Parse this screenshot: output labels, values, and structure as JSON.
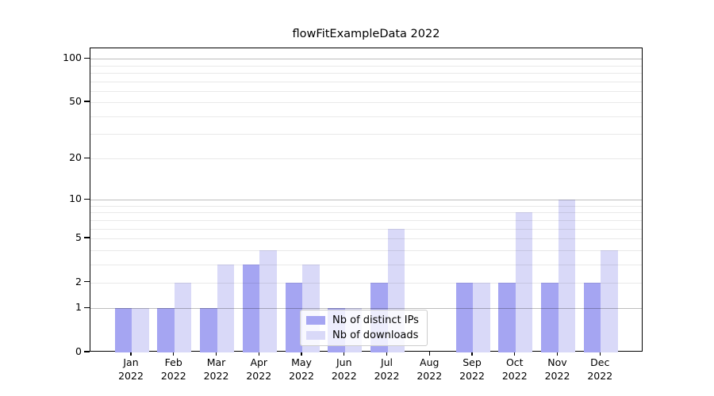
{
  "chart_data": {
    "type": "bar",
    "title": "flowFitExampleData 2022",
    "categories": [
      "Jan",
      "Feb",
      "Mar",
      "Apr",
      "May",
      "Jun",
      "Jul",
      "Aug",
      "Sep",
      "Oct",
      "Nov",
      "Dec"
    ],
    "year_label": "2022",
    "x_tick_labels": [
      "Jan 2022",
      "Feb 2022",
      "Mar 2022",
      "Apr 2022",
      "May 2022",
      "Jun 2022",
      "Jul 2022",
      "Aug 2022",
      "Sep 2022",
      "Oct 2022",
      "Nov 2022",
      "Dec 2022"
    ],
    "series": [
      {
        "name": "Nb of distinct IPs",
        "color": "#a5a5f2",
        "values": [
          1,
          1,
          1,
          3,
          2,
          1,
          2,
          0,
          2,
          2,
          2,
          2
        ]
      },
      {
        "name": "Nb of downloads",
        "color": "#d9d9f8",
        "values": [
          1,
          2,
          3,
          4,
          3,
          1,
          6,
          0,
          2,
          8,
          10,
          4
        ]
      }
    ],
    "y_axis": {
      "scale": "log1p",
      "tick_values": [
        0,
        1,
        2,
        5,
        10,
        20,
        50,
        100
      ],
      "tick_labels": [
        "0",
        "1",
        "2",
        "5",
        "10",
        "20",
        "50",
        "100"
      ],
      "major_grid_values": [
        1,
        10,
        100
      ],
      "minor_grid_values": [
        2,
        3,
        4,
        5,
        6,
        7,
        8,
        9,
        20,
        30,
        40,
        50,
        60,
        70,
        80,
        90
      ],
      "ylim": [
        0,
        117
      ]
    },
    "legend": {
      "position": "lower center",
      "entries": [
        "Nb of distinct IPs",
        "Nb of downloads"
      ]
    },
    "grid": true
  },
  "colors": {
    "bar_distinct_ips": "#a5a5f2",
    "bar_downloads": "#d9d9f8",
    "spine": "#000000",
    "grid_major": "#bdbdbd",
    "grid_minor": "#e7e7e7",
    "legend_border": "#cccccc",
    "background": "#ffffff"
  }
}
